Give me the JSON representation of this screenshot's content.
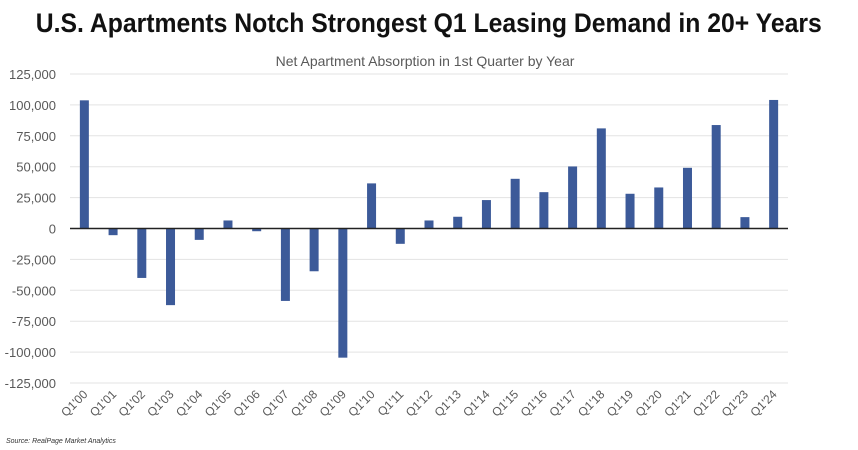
{
  "headline": "U.S. Apartments Notch Strongest Q1 Leasing Demand in 20+ Years",
  "source": "Source: RealPage Market Analytics",
  "chart_data": {
    "type": "bar",
    "title": "Net Apartment Absorption in 1st Quarter by Year",
    "xlabel": "",
    "ylabel": "",
    "ylim": [
      -125000,
      125000
    ],
    "yticks": [
      125000,
      100000,
      75000,
      50000,
      25000,
      0,
      -25000,
      -50000,
      -75000,
      -100000,
      -125000
    ],
    "ytick_labels": [
      "125,000",
      "100,000",
      "75,000",
      "50,000",
      "25,000",
      "0",
      "-25,000",
      "-50,000",
      "-75,000",
      "-100,000",
      "-125,000"
    ],
    "grid": true,
    "bar_color": "#3c5a99",
    "categories": [
      "Q1'00",
      "Q1'01",
      "Q1'02",
      "Q1'03",
      "Q1'04",
      "Q1'05",
      "Q1'06",
      "Q1'07",
      "Q1'08",
      "Q1'09",
      "Q1'10",
      "Q1'11",
      "Q1'12",
      "Q1'13",
      "Q1'14",
      "Q1'15",
      "Q1'16",
      "Q1'17",
      "Q1'18",
      "Q1'19",
      "Q1'20",
      "Q1'21",
      "Q1'22",
      "Q1'23",
      "Q1'24"
    ],
    "values": [
      103700,
      -5400,
      -40000,
      -62000,
      -9200,
      6500,
      -2200,
      -58600,
      -34600,
      -104500,
      36500,
      -12400,
      6500,
      9500,
      23000,
      40200,
      29400,
      50200,
      81000,
      28100,
      33200,
      49100,
      83700,
      9200,
      104000
    ]
  }
}
